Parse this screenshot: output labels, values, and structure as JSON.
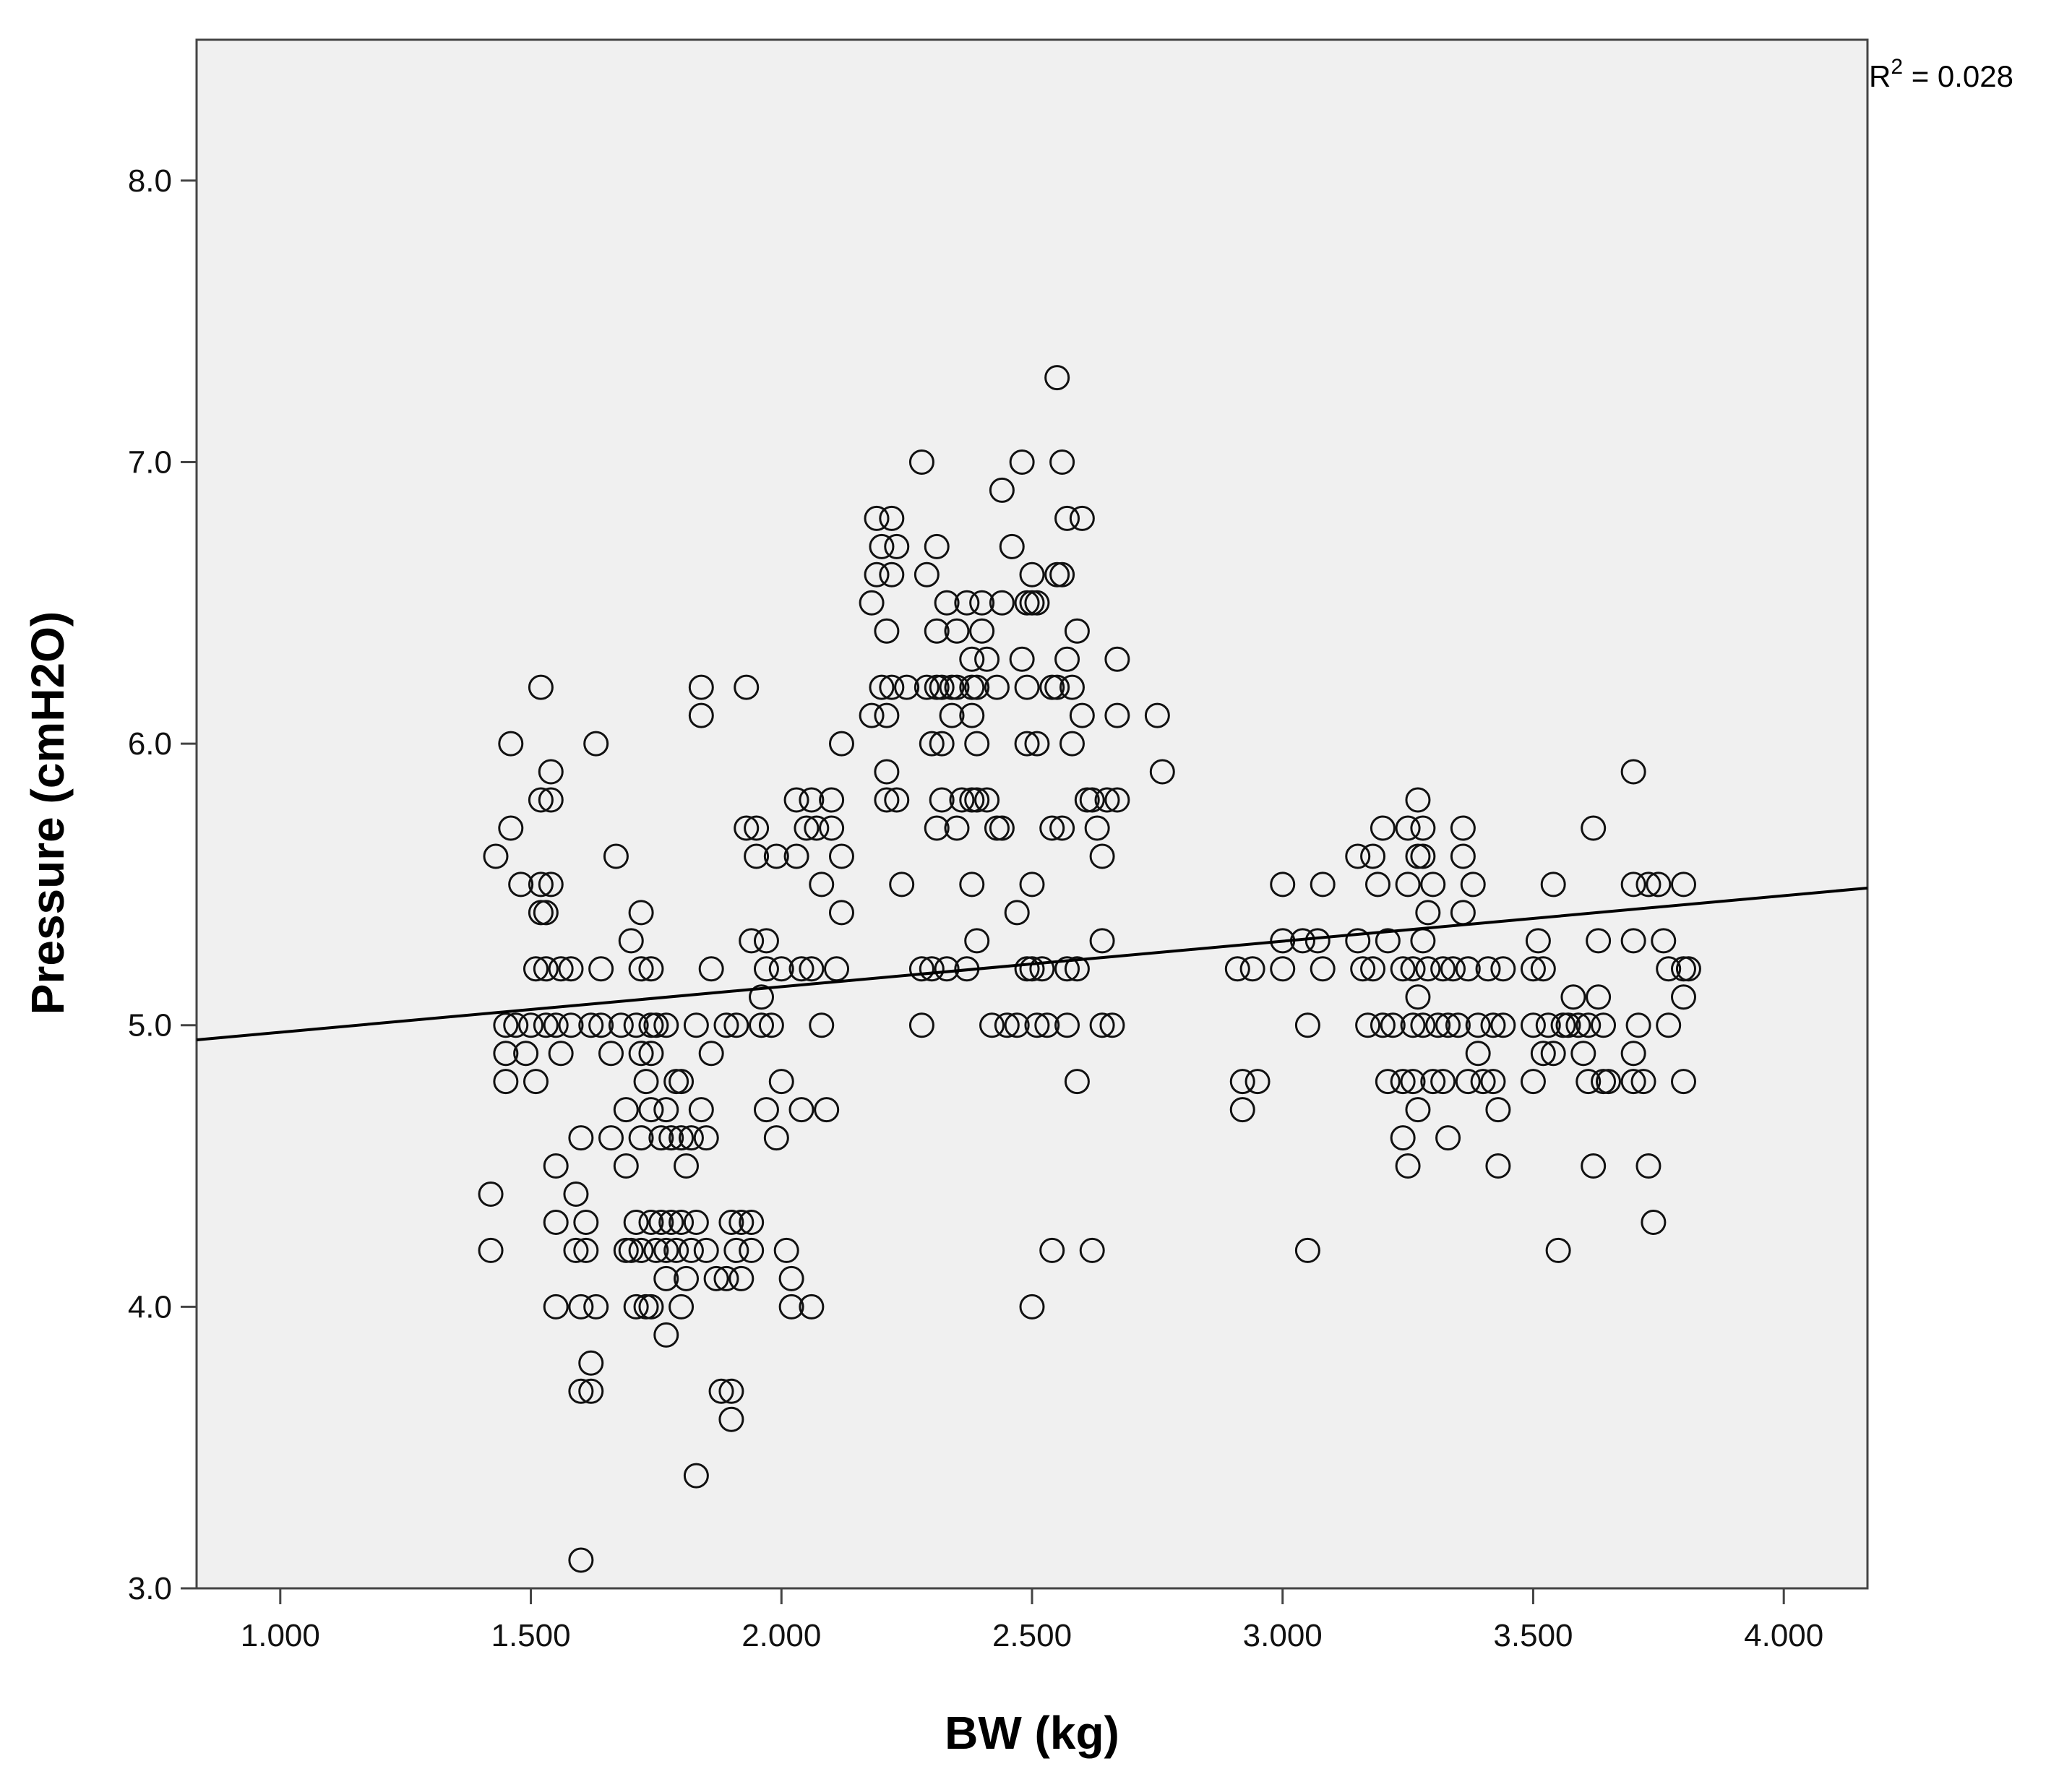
{
  "chart_data": {
    "type": "scatter",
    "title": "",
    "xlabel": "BW (kg)",
    "ylabel": "Pressure (cmH2O)",
    "xlim": [
      0.833,
      4.167
    ],
    "ylim": [
      3.0,
      8.5
    ],
    "x_ticks": [
      1.0,
      1.5,
      2.0,
      2.5,
      3.0,
      3.5,
      4.0
    ],
    "x_tick_labels": [
      "1.000",
      "1.500",
      "2.000",
      "2.500",
      "3.000",
      "3.500",
      "4.000"
    ],
    "y_ticks": [
      3.0,
      4.0,
      5.0,
      6.0,
      7.0,
      8.0
    ],
    "y_tick_labels": [
      "3.0",
      "4.0",
      "5.0",
      "6.0",
      "7.0",
      "8.0"
    ],
    "grid": false,
    "plot_background": "#f0f0f0",
    "marker": "open-circle",
    "fit_line": {
      "intercept": 4.8133,
      "slope": 0.1617,
      "x_range": [
        0.833,
        4.167
      ]
    },
    "annotation": {
      "r_label": "R",
      "r_exponent": "2",
      "r_value": " = 0.028"
    },
    "points": [
      [
        1.43,
        5.6
      ],
      [
        1.42,
        4.4
      ],
      [
        1.42,
        4.2
      ],
      [
        1.45,
        5.0
      ],
      [
        1.45,
        4.9
      ],
      [
        1.45,
        4.8
      ],
      [
        1.46,
        6.0
      ],
      [
        1.46,
        5.7
      ],
      [
        1.47,
        5.0
      ],
      [
        1.48,
        5.5
      ],
      [
        1.49,
        4.9
      ],
      [
        1.5,
        5.0
      ],
      [
        1.51,
        5.2
      ],
      [
        1.51,
        4.8
      ],
      [
        1.52,
        6.2
      ],
      [
        1.52,
        5.8
      ],
      [
        1.52,
        5.5
      ],
      [
        1.52,
        5.4
      ],
      [
        1.53,
        5.2
      ],
      [
        1.53,
        5.0
      ],
      [
        1.54,
        5.9
      ],
      [
        1.54,
        5.8
      ],
      [
        1.54,
        5.5
      ],
      [
        1.53,
        5.4
      ],
      [
        1.55,
        5.0
      ],
      [
        1.55,
        4.5
      ],
      [
        1.55,
        4.3
      ],
      [
        1.56,
        5.2
      ],
      [
        1.56,
        4.9
      ],
      [
        1.55,
        4.0
      ],
      [
        1.58,
        5.2
      ],
      [
        1.58,
        5.0
      ],
      [
        1.59,
        4.4
      ],
      [
        1.59,
        4.2
      ],
      [
        1.6,
        4.6
      ],
      [
        1.6,
        4.0
      ],
      [
        1.6,
        3.7
      ],
      [
        1.6,
        3.1
      ],
      [
        1.61,
        4.3
      ],
      [
        1.61,
        4.2
      ],
      [
        1.62,
        5.0
      ],
      [
        1.62,
        3.8
      ],
      [
        1.62,
        3.7
      ],
      [
        1.63,
        4.0
      ],
      [
        1.63,
        6.0
      ],
      [
        1.64,
        5.2
      ],
      [
        1.64,
        5.0
      ],
      [
        1.66,
        4.9
      ],
      [
        1.66,
        4.6
      ],
      [
        1.67,
        5.6
      ],
      [
        1.68,
        5.0
      ],
      [
        1.69,
        4.5
      ],
      [
        1.69,
        4.2
      ],
      [
        1.69,
        4.7
      ],
      [
        1.7,
        5.3
      ],
      [
        1.7,
        4.2
      ],
      [
        1.71,
        5.0
      ],
      [
        1.71,
        4.3
      ],
      [
        1.71,
        4.0
      ],
      [
        1.72,
        5.4
      ],
      [
        1.72,
        5.2
      ],
      [
        1.72,
        4.9
      ],
      [
        1.72,
        4.6
      ],
      [
        1.72,
        4.2
      ],
      [
        1.73,
        4.8
      ],
      [
        1.73,
        4.0
      ],
      [
        1.74,
        5.2
      ],
      [
        1.74,
        5.0
      ],
      [
        1.74,
        4.9
      ],
      [
        1.74,
        4.7
      ],
      [
        1.74,
        4.3
      ],
      [
        1.74,
        4.0
      ],
      [
        1.75,
        5.0
      ],
      [
        1.75,
        4.2
      ],
      [
        1.76,
        4.6
      ],
      [
        1.76,
        4.3
      ],
      [
        1.77,
        5.0
      ],
      [
        1.77,
        4.7
      ],
      [
        1.77,
        4.2
      ],
      [
        1.77,
        4.1
      ],
      [
        1.77,
        3.9
      ],
      [
        1.78,
        4.6
      ],
      [
        1.78,
        4.3
      ],
      [
        1.79,
        4.8
      ],
      [
        1.79,
        4.2
      ],
      [
        1.8,
        4.8
      ],
      [
        1.8,
        4.6
      ],
      [
        1.8,
        4.3
      ],
      [
        1.8,
        4.0
      ],
      [
        1.81,
        4.5
      ],
      [
        1.81,
        4.1
      ],
      [
        1.82,
        4.6
      ],
      [
        1.82,
        4.2
      ],
      [
        1.83,
        5.0
      ],
      [
        1.83,
        4.3
      ],
      [
        1.83,
        3.4
      ],
      [
        1.84,
        6.2
      ],
      [
        1.84,
        6.1
      ],
      [
        1.84,
        4.7
      ],
      [
        1.85,
        4.6
      ],
      [
        1.85,
        4.2
      ],
      [
        1.86,
        5.2
      ],
      [
        1.86,
        4.9
      ],
      [
        1.87,
        4.1
      ],
      [
        1.88,
        3.7
      ],
      [
        1.89,
        5.0
      ],
      [
        1.89,
        4.1
      ],
      [
        1.9,
        4.3
      ],
      [
        1.9,
        3.7
      ],
      [
        1.9,
        3.6
      ],
      [
        1.91,
        5.0
      ],
      [
        1.91,
        4.2
      ],
      [
        1.92,
        4.3
      ],
      [
        1.92,
        4.1
      ],
      [
        1.93,
        6.2
      ],
      [
        1.93,
        5.7
      ],
      [
        1.94,
        5.3
      ],
      [
        1.94,
        4.3
      ],
      [
        1.94,
        4.2
      ],
      [
        1.95,
        5.7
      ],
      [
        1.95,
        5.6
      ],
      [
        1.96,
        5.1
      ],
      [
        1.96,
        5.0
      ],
      [
        1.97,
        5.3
      ],
      [
        1.97,
        5.2
      ],
      [
        1.97,
        4.7
      ],
      [
        1.98,
        5.0
      ],
      [
        1.99,
        5.6
      ],
      [
        1.99,
        4.6
      ],
      [
        2.0,
        5.2
      ],
      [
        2.0,
        4.8
      ],
      [
        2.01,
        4.2
      ],
      [
        2.02,
        4.1
      ],
      [
        2.02,
        4.0
      ],
      [
        2.03,
        5.8
      ],
      [
        2.03,
        5.6
      ],
      [
        2.04,
        5.2
      ],
      [
        2.04,
        4.7
      ],
      [
        2.05,
        5.7
      ],
      [
        2.06,
        5.8
      ],
      [
        2.06,
        5.2
      ],
      [
        2.06,
        4.0
      ],
      [
        2.07,
        5.7
      ],
      [
        2.08,
        5.5
      ],
      [
        2.08,
        5.0
      ],
      [
        2.09,
        4.7
      ],
      [
        2.1,
        5.8
      ],
      [
        2.1,
        5.7
      ],
      [
        2.11,
        5.2
      ],
      [
        2.12,
        5.6
      ],
      [
        2.12,
        5.4
      ],
      [
        2.12,
        6.0
      ],
      [
        2.18,
        6.5
      ],
      [
        2.18,
        6.1
      ],
      [
        2.19,
        6.8
      ],
      [
        2.19,
        6.6
      ],
      [
        2.2,
        6.7
      ],
      [
        2.2,
        6.2
      ],
      [
        2.21,
        6.4
      ],
      [
        2.21,
        6.1
      ],
      [
        2.21,
        5.9
      ],
      [
        2.21,
        5.8
      ],
      [
        2.22,
        6.8
      ],
      [
        2.22,
        6.6
      ],
      [
        2.22,
        6.2
      ],
      [
        2.23,
        6.7
      ],
      [
        2.23,
        5.8
      ],
      [
        2.24,
        5.5
      ],
      [
        2.25,
        6.2
      ],
      [
        2.28,
        7.0
      ],
      [
        2.28,
        5.2
      ],
      [
        2.28,
        5.0
      ],
      [
        2.29,
        6.6
      ],
      [
        2.29,
        6.2
      ],
      [
        2.3,
        6.0
      ],
      [
        2.3,
        5.2
      ],
      [
        2.31,
        6.7
      ],
      [
        2.31,
        6.4
      ],
      [
        2.31,
        6.2
      ],
      [
        2.31,
        5.7
      ],
      [
        2.32,
        6.2
      ],
      [
        2.32,
        6.0
      ],
      [
        2.32,
        5.8
      ],
      [
        2.33,
        6.5
      ],
      [
        2.33,
        5.2
      ],
      [
        2.34,
        6.2
      ],
      [
        2.34,
        6.1
      ],
      [
        2.35,
        6.4
      ],
      [
        2.35,
        6.2
      ],
      [
        2.35,
        5.7
      ],
      [
        2.36,
        5.8
      ],
      [
        2.37,
        5.2
      ],
      [
        2.37,
        6.5
      ],
      [
        2.38,
        6.3
      ],
      [
        2.38,
        6.2
      ],
      [
        2.38,
        6.1
      ],
      [
        2.38,
        5.8
      ],
      [
        2.38,
        5.5
      ],
      [
        2.39,
        6.2
      ],
      [
        2.39,
        6.0
      ],
      [
        2.39,
        5.8
      ],
      [
        2.39,
        5.3
      ],
      [
        2.4,
        6.5
      ],
      [
        2.4,
        6.4
      ],
      [
        2.41,
        6.3
      ],
      [
        2.41,
        5.8
      ],
      [
        2.42,
        5.0
      ],
      [
        2.43,
        6.2
      ],
      [
        2.43,
        5.7
      ],
      [
        2.44,
        6.9
      ],
      [
        2.44,
        6.5
      ],
      [
        2.44,
        5.7
      ],
      [
        2.45,
        5.0
      ],
      [
        2.46,
        6.7
      ],
      [
        2.47,
        5.4
      ],
      [
        2.47,
        5.0
      ],
      [
        2.48,
        7.0
      ],
      [
        2.48,
        6.3
      ],
      [
        2.49,
        6.5
      ],
      [
        2.49,
        6.2
      ],
      [
        2.49,
        6.0
      ],
      [
        2.49,
        5.2
      ],
      [
        2.5,
        6.6
      ],
      [
        2.5,
        6.5
      ],
      [
        2.5,
        5.5
      ],
      [
        2.5,
        5.2
      ],
      [
        2.5,
        4.0
      ],
      [
        2.51,
        6.5
      ],
      [
        2.51,
        6.0
      ],
      [
        2.51,
        5.0
      ],
      [
        2.52,
        5.2
      ],
      [
        2.53,
        5.0
      ],
      [
        2.54,
        6.2
      ],
      [
        2.54,
        5.7
      ],
      [
        2.54,
        4.2
      ],
      [
        2.55,
        7.3
      ],
      [
        2.55,
        6.6
      ],
      [
        2.55,
        6.2
      ],
      [
        2.56,
        7.0
      ],
      [
        2.56,
        6.6
      ],
      [
        2.56,
        5.7
      ],
      [
        2.57,
        6.8
      ],
      [
        2.57,
        6.3
      ],
      [
        2.57,
        5.2
      ],
      [
        2.57,
        5.0
      ],
      [
        2.58,
        6.2
      ],
      [
        2.58,
        6.0
      ],
      [
        2.59,
        6.4
      ],
      [
        2.59,
        5.2
      ],
      [
        2.59,
        4.8
      ],
      [
        2.6,
        6.8
      ],
      [
        2.6,
        6.1
      ],
      [
        2.61,
        5.8
      ],
      [
        2.62,
        5.8
      ],
      [
        2.62,
        4.2
      ],
      [
        2.63,
        5.7
      ],
      [
        2.64,
        5.6
      ],
      [
        2.64,
        5.3
      ],
      [
        2.64,
        5.0
      ],
      [
        2.65,
        5.8
      ],
      [
        2.66,
        5.0
      ],
      [
        2.67,
        6.3
      ],
      [
        2.67,
        6.1
      ],
      [
        2.67,
        5.8
      ],
      [
        2.75,
        6.1
      ],
      [
        2.76,
        5.9
      ],
      [
        2.91,
        5.2
      ],
      [
        2.92,
        4.8
      ],
      [
        2.92,
        4.7
      ],
      [
        2.94,
        5.2
      ],
      [
        2.95,
        4.8
      ],
      [
        3.0,
        5.5
      ],
      [
        3.0,
        5.3
      ],
      [
        3.0,
        5.2
      ],
      [
        3.04,
        5.3
      ],
      [
        3.05,
        5.0
      ],
      [
        3.05,
        4.2
      ],
      [
        3.07,
        5.3
      ],
      [
        3.08,
        5.2
      ],
      [
        3.08,
        5.5
      ],
      [
        3.15,
        5.6
      ],
      [
        3.15,
        5.3
      ],
      [
        3.16,
        5.2
      ],
      [
        3.17,
        5.0
      ],
      [
        3.18,
        5.6
      ],
      [
        3.18,
        5.2
      ],
      [
        3.19,
        5.5
      ],
      [
        3.2,
        5.7
      ],
      [
        3.2,
        5.0
      ],
      [
        3.21,
        5.3
      ],
      [
        3.21,
        4.8
      ],
      [
        3.22,
        5.0
      ],
      [
        3.24,
        5.2
      ],
      [
        3.24,
        4.8
      ],
      [
        3.24,
        4.6
      ],
      [
        3.25,
        5.7
      ],
      [
        3.25,
        5.5
      ],
      [
        3.25,
        4.5
      ],
      [
        3.26,
        5.2
      ],
      [
        3.26,
        5.0
      ],
      [
        3.26,
        4.8
      ],
      [
        3.27,
        5.8
      ],
      [
        3.27,
        5.6
      ],
      [
        3.27,
        5.1
      ],
      [
        3.27,
        4.7
      ],
      [
        3.28,
        5.7
      ],
      [
        3.28,
        5.6
      ],
      [
        3.28,
        5.3
      ],
      [
        3.28,
        5.0
      ],
      [
        3.29,
        5.4
      ],
      [
        3.29,
        5.2
      ],
      [
        3.3,
        5.5
      ],
      [
        3.3,
        4.8
      ],
      [
        3.31,
        5.0
      ],
      [
        3.32,
        5.2
      ],
      [
        3.32,
        4.8
      ],
      [
        3.33,
        5.0
      ],
      [
        3.33,
        4.6
      ],
      [
        3.34,
        5.2
      ],
      [
        3.35,
        5.0
      ],
      [
        3.36,
        5.7
      ],
      [
        3.36,
        5.6
      ],
      [
        3.36,
        5.4
      ],
      [
        3.37,
        5.2
      ],
      [
        3.37,
        4.8
      ],
      [
        3.38,
        5.5
      ],
      [
        3.39,
        5.0
      ],
      [
        3.39,
        4.9
      ],
      [
        3.4,
        4.8
      ],
      [
        3.41,
        5.2
      ],
      [
        3.42,
        5.0
      ],
      [
        3.42,
        4.8
      ],
      [
        3.43,
        4.7
      ],
      [
        3.43,
        4.5
      ],
      [
        3.44,
        5.2
      ],
      [
        3.44,
        5.0
      ],
      [
        3.5,
        5.2
      ],
      [
        3.5,
        5.0
      ],
      [
        3.5,
        4.8
      ],
      [
        3.51,
        5.3
      ],
      [
        3.52,
        5.2
      ],
      [
        3.52,
        4.9
      ],
      [
        3.53,
        5.0
      ],
      [
        3.54,
        5.5
      ],
      [
        3.54,
        4.9
      ],
      [
        3.55,
        4.2
      ],
      [
        3.56,
        5.0
      ],
      [
        3.57,
        5.0
      ],
      [
        3.58,
        5.1
      ],
      [
        3.59,
        5.0
      ],
      [
        3.6,
        4.9
      ],
      [
        3.61,
        5.0
      ],
      [
        3.61,
        4.8
      ],
      [
        3.62,
        5.7
      ],
      [
        3.62,
        4.5
      ],
      [
        3.63,
        5.3
      ],
      [
        3.63,
        5.1
      ],
      [
        3.64,
        5.0
      ],
      [
        3.64,
        4.8
      ],
      [
        3.65,
        4.8
      ],
      [
        3.7,
        5.9
      ],
      [
        3.7,
        5.5
      ],
      [
        3.7,
        5.3
      ],
      [
        3.7,
        4.9
      ],
      [
        3.7,
        4.8
      ],
      [
        3.71,
        5.0
      ],
      [
        3.72,
        4.8
      ],
      [
        3.73,
        5.5
      ],
      [
        3.73,
        4.5
      ],
      [
        3.74,
        4.3
      ],
      [
        3.75,
        5.5
      ],
      [
        3.76,
        5.3
      ],
      [
        3.77,
        5.2
      ],
      [
        3.77,
        5.0
      ],
      [
        3.8,
        5.5
      ],
      [
        3.8,
        5.2
      ],
      [
        3.8,
        5.1
      ],
      [
        3.8,
        4.8
      ],
      [
        3.81,
        5.2
      ]
    ]
  }
}
